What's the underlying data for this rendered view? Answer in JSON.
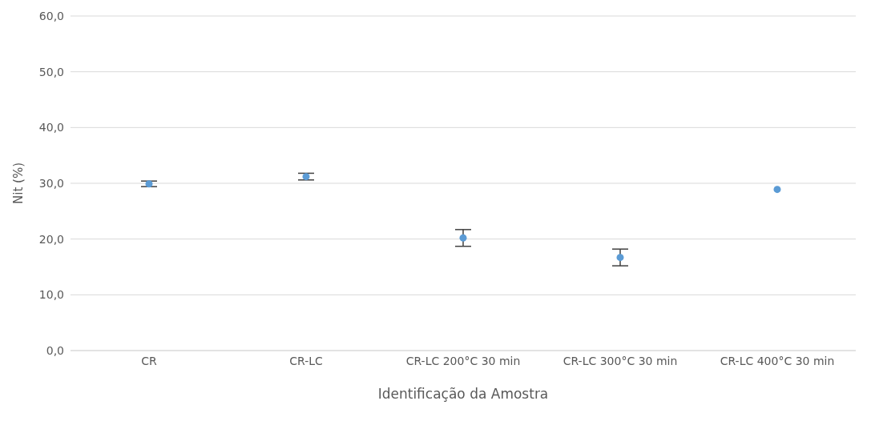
{
  "chart_data": {
    "type": "scatter",
    "xlabel": "Identificação da Amostra",
    "ylabel": "Nit (%)",
    "categories": [
      "CR",
      "CR-LC",
      "CR-LC 200°C 30 min",
      "CR-LC 300°C 30 min",
      "CR-LC 400°C 30 min"
    ],
    "values": [
      29.9,
      31.2,
      20.2,
      16.7,
      28.9
    ],
    "errors": [
      0.5,
      0.6,
      1.5,
      1.5,
      null
    ],
    "color": "#5b9bd5",
    "ylim": [
      0,
      60
    ],
    "yticks": [
      {
        "value": 0,
        "label": "0,0"
      },
      {
        "value": 10,
        "label": "10,0"
      },
      {
        "value": 20,
        "label": "20,0"
      },
      {
        "value": 30,
        "label": "30,0"
      },
      {
        "value": 40,
        "label": "40,0"
      },
      {
        "value": 50,
        "label": "50,0"
      },
      {
        "value": 60,
        "label": "60,0"
      }
    ],
    "grid": "y",
    "marker": "circle",
    "legend": false
  }
}
